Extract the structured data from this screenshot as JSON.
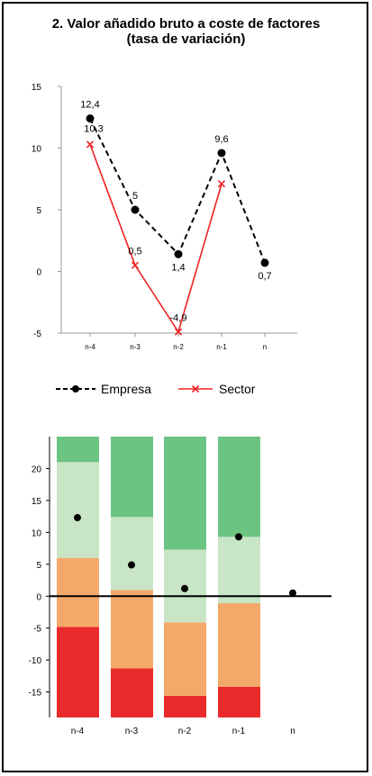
{
  "title_line1": "2. Valor añadido bruto a coste de factores",
  "title_line2": "(tasa de variación)",
  "chart_data": [
    {
      "type": "line",
      "categories": [
        "n-4",
        "n-3",
        "n-2",
        "n-1",
        "n"
      ],
      "ylim": [
        -5,
        15
      ],
      "yticks": [
        15,
        10,
        5,
        0,
        -5
      ],
      "series": [
        {
          "name": "Empresa",
          "values": [
            12.4,
            5.0,
            1.4,
            9.6,
            0.7
          ],
          "labels": [
            "12,4",
            "5",
            "1,4",
            "9,6",
            "0,7"
          ],
          "color": "#000000",
          "dash": true,
          "marker": "circle"
        },
        {
          "name": "Sector",
          "values": [
            10.3,
            0.5,
            -4.9,
            7.1,
            null
          ],
          "labels": [
            "10,3",
            "0,5",
            "-4,9",
            "",
            ""
          ],
          "color": "#ee2222",
          "dash": false,
          "marker": "x"
        }
      ],
      "legend_position": "bottom"
    },
    {
      "type": "bar",
      "stacked": true,
      "categories": [
        "n-4",
        "n-3",
        "n-2",
        "n-1",
        "n"
      ],
      "ylim": [
        -19,
        25
      ],
      "yticks": [
        20,
        15,
        10,
        5,
        0,
        -5,
        -10,
        -15
      ],
      "segments": [
        {
          "color": "#ea2b2b",
          "ranges": [
            [
              -19,
              -4.8
            ],
            [
              -19,
              -11.3
            ],
            [
              -19,
              -15.6
            ],
            [
              -19,
              -14.2
            ],
            null
          ]
        },
        {
          "color": "#f4a96a",
          "ranges": [
            [
              -4.8,
              6.0
            ],
            [
              -11.3,
              1.0
            ],
            [
              -15.6,
              -4.1
            ],
            [
              -14.2,
              -1.1
            ],
            null
          ]
        },
        {
          "color": "#c8e6c5",
          "ranges": [
            [
              6.0,
              21.0
            ],
            [
              1.0,
              12.4
            ],
            [
              -4.1,
              7.3
            ],
            [
              -1.1,
              9.3
            ],
            null
          ]
        },
        {
          "color": "#6cc482",
          "ranges": [
            [
              21.0,
              25
            ],
            [
              12.4,
              25
            ],
            [
              7.3,
              25
            ],
            [
              9.3,
              25
            ],
            null
          ]
        }
      ],
      "points": [
        12.3,
        4.9,
        1.2,
        9.3,
        0.5
      ]
    }
  ]
}
